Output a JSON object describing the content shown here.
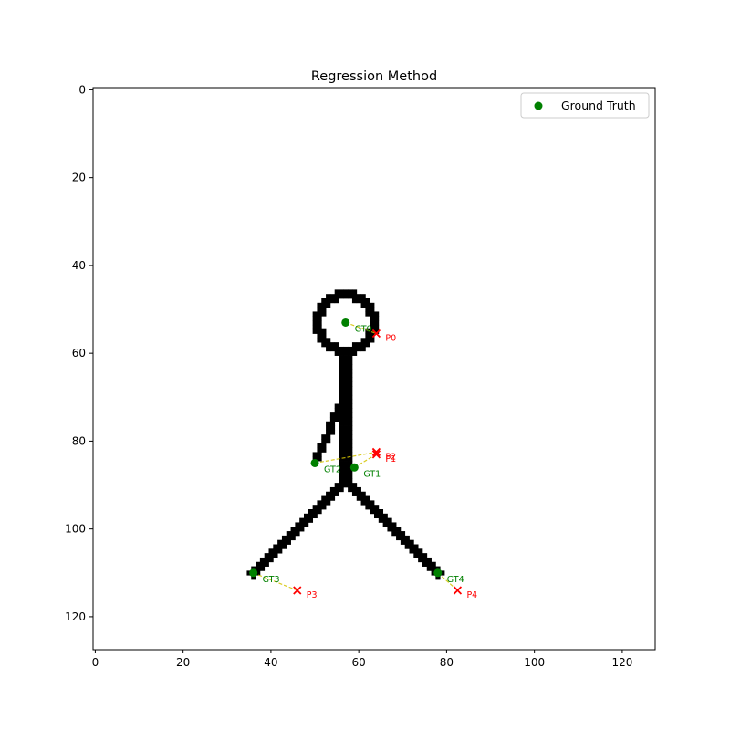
{
  "chart_data": {
    "type": "scatter",
    "title": "Regression Method",
    "xlabel": "",
    "ylabel": "",
    "xlim": [
      -0.5,
      127.5
    ],
    "ylim": [
      127.5,
      -0.5
    ],
    "y_inverted": true,
    "xticks": [
      0,
      20,
      40,
      60,
      80,
      100,
      120
    ],
    "yticks": [
      0,
      20,
      40,
      60,
      80,
      100,
      120
    ],
    "grid": false,
    "legend": {
      "placement": "top-right",
      "entries": [
        "Ground Truth"
      ]
    },
    "colors": {
      "ground_truth": "#008000",
      "prediction": "#ff0000",
      "link": "#d4c400",
      "figure": "#000000"
    },
    "background_image": "stick-figure",
    "ground_truth": [
      {
        "label": "GT0",
        "x": 57,
        "y": 53
      },
      {
        "label": "GT1",
        "x": 59,
        "y": 86
      },
      {
        "label": "GT2",
        "x": 50,
        "y": 85
      },
      {
        "label": "GT3",
        "x": 36,
        "y": 110
      },
      {
        "label": "GT4",
        "x": 78,
        "y": 110
      }
    ],
    "predictions": [
      {
        "label": "P0",
        "x": 64,
        "y": 55.5
      },
      {
        "label": "P1",
        "x": 64,
        "y": 83
      },
      {
        "label": "P2",
        "x": 64,
        "y": 82.5
      },
      {
        "label": "P3",
        "x": 46,
        "y": 114
      },
      {
        "label": "P4",
        "x": 82.5,
        "y": 114
      }
    ]
  }
}
